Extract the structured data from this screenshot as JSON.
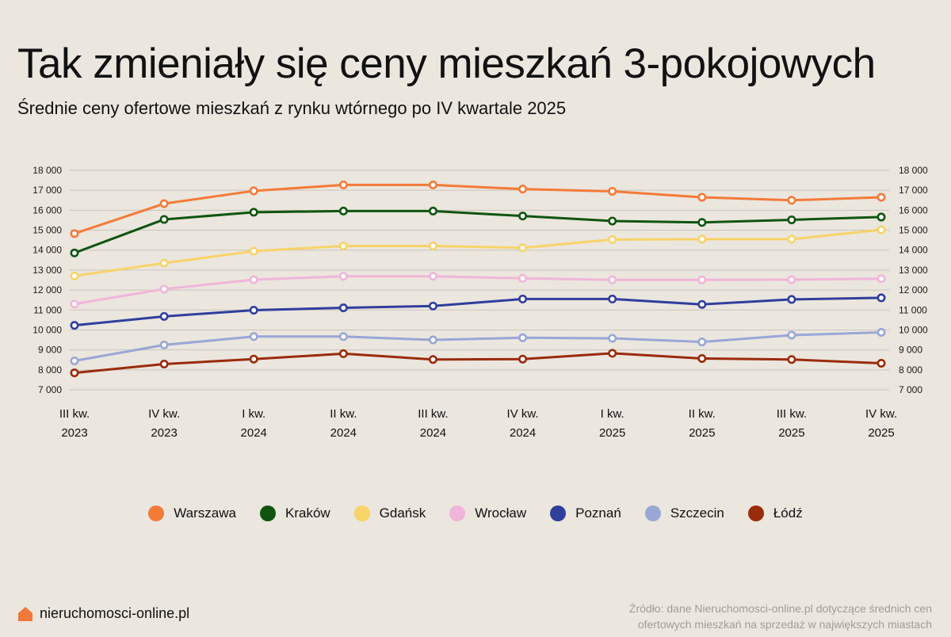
{
  "header": {
    "title": "Tak zmieniały się ceny mieszkań 3-pokojowych",
    "subtitle": "Średnie ceny ofertowe mieszkań z rynku wtórnego po IV kwartale 2025"
  },
  "chart_data": {
    "type": "line",
    "categories": [
      [
        "III kw.",
        "2023"
      ],
      [
        "IV kw.",
        "2023"
      ],
      [
        "I kw.",
        "2024"
      ],
      [
        "II kw.",
        "2024"
      ],
      [
        "III kw.",
        "2024"
      ],
      [
        "IV kw.",
        "2024"
      ],
      [
        "I kw.",
        "2025"
      ],
      [
        "II kw.",
        "2025"
      ],
      [
        "III kw.",
        "2025"
      ],
      [
        "IV kw.",
        "2025"
      ]
    ],
    "ylim": [
      7000,
      18000
    ],
    "yticks": [
      7000,
      8000,
      9000,
      10000,
      11000,
      12000,
      13000,
      14000,
      15000,
      16000,
      17000,
      18000
    ],
    "ytick_labels": [
      "7 000",
      "8 000",
      "9 000",
      "10 000",
      "11 000",
      "12 000",
      "13 000",
      "14 000",
      "15 000",
      "16 000",
      "17 000",
      "18 000"
    ],
    "grid": true,
    "legend_position": "bottom",
    "series": [
      {
        "name": "Warszawa",
        "color": "#f47a38",
        "values": [
          14830,
          16330,
          16970,
          17270,
          17270,
          17060,
          16950,
          16650,
          16500,
          16650
        ]
      },
      {
        "name": "Kraków",
        "color": "#0f5510",
        "values": [
          13860,
          15540,
          15900,
          15960,
          15960,
          15710,
          15460,
          15390,
          15520,
          15660
        ]
      },
      {
        "name": "Gdańsk",
        "color": "#f8d368",
        "values": [
          12710,
          13350,
          13950,
          14210,
          14210,
          14120,
          14530,
          14550,
          14550,
          15020
        ]
      },
      {
        "name": "Wrocław",
        "color": "#f0b5da",
        "values": [
          11300,
          12050,
          12520,
          12690,
          12690,
          12590,
          12510,
          12510,
          12520,
          12570
        ]
      },
      {
        "name": "Poznań",
        "color": "#303e9c",
        "values": [
          10230,
          10680,
          10990,
          11110,
          11200,
          11550,
          11550,
          11280,
          11530,
          11610
        ]
      },
      {
        "name": "Szczecin",
        "color": "#99a6d6",
        "values": [
          8450,
          9250,
          9670,
          9670,
          9500,
          9610,
          9580,
          9400,
          9740,
          9880
        ]
      },
      {
        "name": "Łódź",
        "color": "#9a2b0b",
        "values": [
          7850,
          8290,
          8540,
          8810,
          8520,
          8540,
          8830,
          8570,
          8520,
          8330
        ]
      }
    ]
  },
  "footer": {
    "brand": "nieruchomosci-online.pl",
    "brand_color": "#f07838",
    "source_line1": "Źródło: dane Nieruchomosci-online.pl dotyczące średnich cen",
    "source_line2": "ofertowych mieszkań na sprzedaż w największych miastach"
  }
}
